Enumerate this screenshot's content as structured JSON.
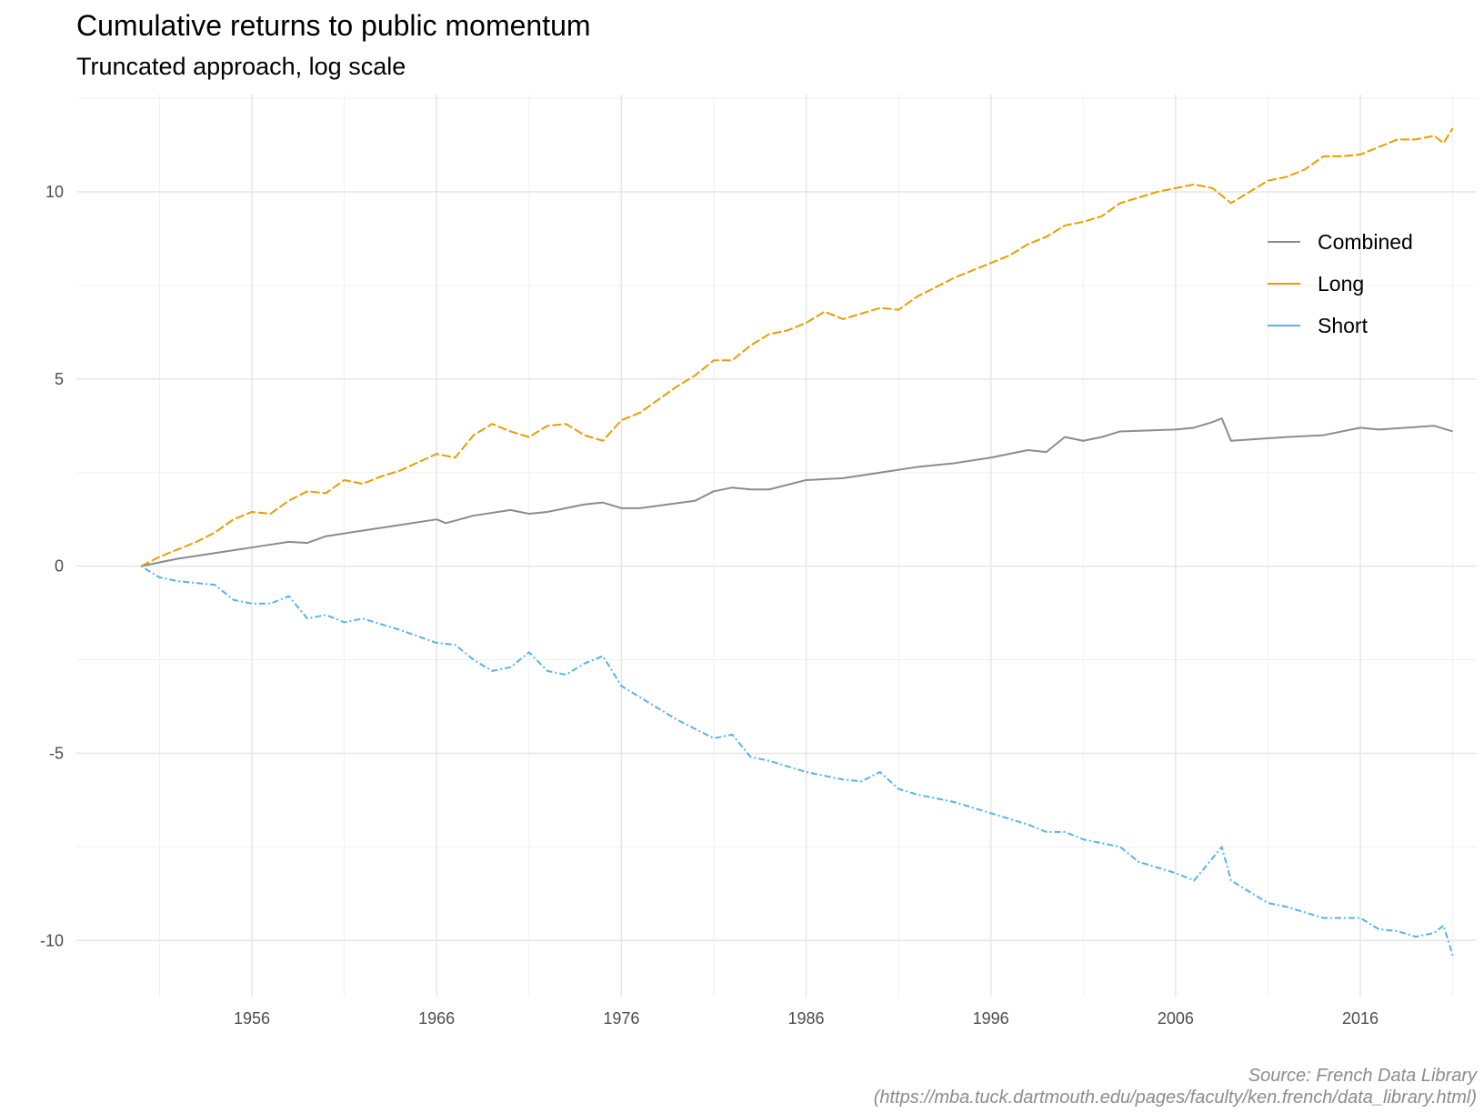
{
  "chart_data": {
    "type": "line",
    "title": "Cumulative returns to public momentum",
    "subtitle": "Truncated approach, log scale",
    "caption": [
      "Source: French Data Library",
      "(https://mba.tuck.dartmouth.edu/pages/faculty/ken.french/data_library.html)"
    ],
    "xlabel": "",
    "ylabel": "",
    "xlim": [
      1946.5,
      2022.3
    ],
    "ylim": [
      -11.5,
      12.6
    ],
    "x_ticks": [
      1956,
      1966,
      1976,
      1986,
      1996,
      2006,
      2016
    ],
    "x_tick_labels": [
      "1956",
      "1966",
      "1976",
      "1986",
      "1996",
      "2006",
      "2016"
    ],
    "y_ticks": [
      -10,
      -5,
      0,
      5,
      10
    ],
    "y_tick_labels": [
      "-10",
      "-5",
      "0",
      "5",
      "10"
    ],
    "grid": true,
    "legend_position": "right",
    "series": [
      {
        "name": "Combined",
        "color": "#8c8c8c",
        "dash": "solid",
        "x": [
          1950,
          1951,
          1952,
          1954,
          1956,
          1958,
          1959,
          1960,
          1962,
          1964,
          1966,
          1966.5,
          1968,
          1970,
          1971,
          1972,
          1974,
          1975,
          1976,
          1977,
          1980,
          1981,
          1982,
          1983,
          1984,
          1986,
          1988,
          1990,
          1992,
          1994,
          1996,
          1998,
          1999,
          2000,
          2001,
          2002,
          2003,
          2006,
          2007,
          2008,
          2008.5,
          2009,
          2012,
          2014,
          2016,
          2017,
          2020,
          2021
        ],
        "values": [
          0.0,
          0.1,
          0.2,
          0.35,
          0.5,
          0.65,
          0.62,
          0.8,
          0.95,
          1.1,
          1.25,
          1.15,
          1.35,
          1.5,
          1.4,
          1.45,
          1.65,
          1.7,
          1.55,
          1.55,
          1.75,
          2.0,
          2.1,
          2.05,
          2.05,
          2.3,
          2.35,
          2.5,
          2.65,
          2.75,
          2.9,
          3.1,
          3.05,
          3.45,
          3.35,
          3.45,
          3.6,
          3.65,
          3.7,
          3.85,
          3.95,
          3.35,
          3.45,
          3.5,
          3.7,
          3.65,
          3.75,
          3.6
        ]
      },
      {
        "name": "Long",
        "color": "#E69F00",
        "dash": "longdash",
        "x": [
          1950,
          1951,
          1952,
          1953,
          1954,
          1955,
          1956,
          1957,
          1958,
          1959,
          1960,
          1961,
          1962,
          1963,
          1964,
          1966,
          1967,
          1968,
          1969,
          1970,
          1971,
          1972,
          1973,
          1974,
          1975,
          1976,
          1977,
          1979,
          1980,
          1981,
          1982,
          1983,
          1984,
          1985,
          1986,
          1987,
          1988,
          1990,
          1991,
          1992,
          1994,
          1995,
          1996,
          1997,
          1998,
          1999,
          2000,
          2001,
          2002,
          2003,
          2005,
          2007,
          2008,
          2009,
          2010,
          2011,
          2012,
          2013,
          2014,
          2015,
          2016,
          2017,
          2018,
          2019,
          2020,
          2020.5,
          2021
        ],
        "values": [
          0.0,
          0.25,
          0.45,
          0.65,
          0.9,
          1.25,
          1.45,
          1.4,
          1.75,
          2.0,
          1.95,
          2.3,
          2.2,
          2.4,
          2.55,
          3.0,
          2.9,
          3.5,
          3.8,
          3.6,
          3.45,
          3.75,
          3.8,
          3.5,
          3.35,
          3.9,
          4.1,
          4.8,
          5.1,
          5.5,
          5.5,
          5.9,
          6.2,
          6.3,
          6.5,
          6.8,
          6.6,
          6.9,
          6.85,
          7.2,
          7.7,
          7.9,
          8.1,
          8.3,
          8.6,
          8.8,
          9.1,
          9.2,
          9.35,
          9.7,
          10.0,
          10.2,
          10.1,
          9.7,
          10.0,
          10.3,
          10.4,
          10.6,
          10.95,
          10.95,
          11.0,
          11.2,
          11.4,
          11.4,
          11.5,
          11.3,
          11.7
        ]
      },
      {
        "name": "Short",
        "color": "#56B4E9",
        "dash": "dotdash",
        "x": [
          1950,
          1951,
          1952,
          1953,
          1954,
          1955,
          1956,
          1957,
          1958,
          1959,
          1960,
          1961,
          1962,
          1963,
          1964,
          1966,
          1967,
          1968,
          1969,
          1970,
          1971,
          1972,
          1973,
          1974,
          1975,
          1976,
          1977,
          1979,
          1981,
          1982,
          1983,
          1984,
          1986,
          1987,
          1988,
          1989,
          1990,
          1991,
          1992,
          1994,
          1996,
          1998,
          1999,
          2000,
          2001,
          2002,
          2003,
          2004,
          2006,
          2007,
          2008,
          2008.5,
          2009,
          2010,
          2011,
          2012,
          2014,
          2016,
          2017,
          2018,
          2019,
          2020,
          2020.5,
          2021
        ],
        "values": [
          0.0,
          -0.3,
          -0.4,
          -0.45,
          -0.5,
          -0.9,
          -1.0,
          -1.0,
          -0.8,
          -1.4,
          -1.3,
          -1.5,
          -1.4,
          -1.55,
          -1.7,
          -2.05,
          -2.1,
          -2.5,
          -2.8,
          -2.7,
          -2.3,
          -2.8,
          -2.9,
          -2.6,
          -2.4,
          -3.2,
          -3.5,
          -4.1,
          -4.6,
          -4.5,
          -5.1,
          -5.2,
          -5.5,
          -5.6,
          -5.7,
          -5.75,
          -5.5,
          -5.95,
          -6.1,
          -6.3,
          -6.6,
          -6.9,
          -7.1,
          -7.1,
          -7.3,
          -7.4,
          -7.5,
          -7.9,
          -8.2,
          -8.4,
          -7.8,
          -7.5,
          -8.4,
          -8.7,
          -9.0,
          -9.1,
          -9.4,
          -9.4,
          -9.7,
          -9.75,
          -9.9,
          -9.8,
          -9.6,
          -10.4
        ]
      }
    ]
  }
}
